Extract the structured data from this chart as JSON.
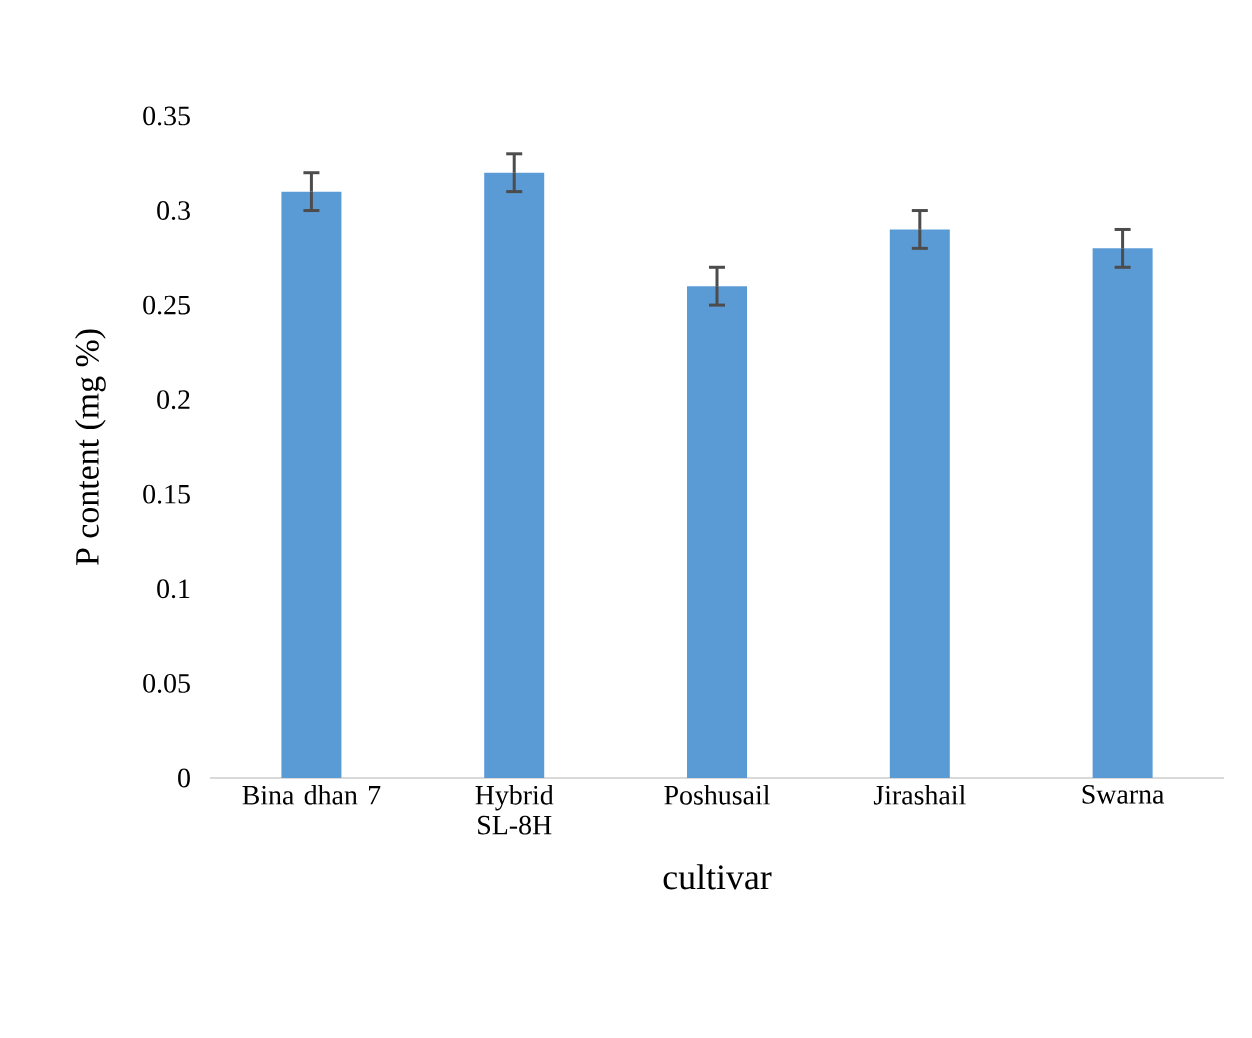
{
  "chart_data": {
    "type": "bar",
    "ylabel": "P content (mg %)",
    "xlabel": "cultivar",
    "categories": [
      "Bina dhan 7",
      "Hybrid SL-8H",
      "Poshusail",
      "Jirashail",
      "Swarna"
    ],
    "values": [
      0.31,
      0.32,
      0.26,
      0.29,
      0.28
    ],
    "errors": [
      0.01,
      0.01,
      0.01,
      0.01,
      0.01
    ],
    "color": "#5b9bd5",
    "ylim": [
      0,
      0.35
    ],
    "yticks": [
      0,
      0.05,
      0.1,
      0.15,
      0.2,
      0.25,
      0.3,
      0.35
    ],
    "grid": false
  }
}
